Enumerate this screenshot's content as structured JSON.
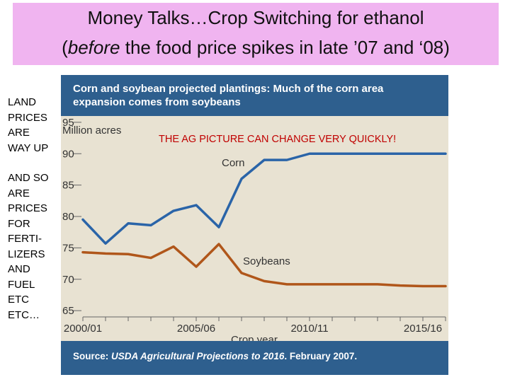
{
  "slide": {
    "title_line1": "Money Talks…Crop Switching for ethanol",
    "title_line2_open": "(",
    "title_line2_emph": "before",
    "title_line2_rest": " the food price spikes in late ’07 and ‘08)",
    "side_text_1": [
      "LAND",
      "PRICES",
      "ARE",
      "WAY UP"
    ],
    "side_text_2": [
      "AND SO",
      "ARE",
      "PRICES",
      "FOR",
      "FERTI-",
      "LIZERS",
      "AND",
      "FUEL",
      "ETC",
      "ETC…"
    ],
    "note": "THE AG PICTURE CAN CHANGE VERY QUICKLY!",
    "source_label": "Source:",
    "source_emph": "USDA Agricultural Projections to 2016",
    "source_rest": ". February 2007."
  },
  "colors": {
    "title_bg": "#f0b4f0",
    "panel_bg": "#e8e2d2",
    "header_bg": "#2e5f8e",
    "corn": "#2a64a8",
    "soybeans": "#b0561a",
    "note": "#c00000"
  },
  "chart_data": {
    "type": "line",
    "title": "Corn and soybean projected plantings: Much of the corn area expansion comes from soybeans",
    "ylabel": "Million acres",
    "xlabel": "Crop year",
    "x": [
      "2000/01",
      "2001/02",
      "2002/03",
      "2003/04",
      "2004/05",
      "2005/06",
      "2006/07",
      "2007/08",
      "2008/09",
      "2009/10",
      "2010/11",
      "2011/12",
      "2012/13",
      "2013/14",
      "2014/15",
      "2015/16",
      "2016/17"
    ],
    "xtick_labels": [
      "2000/01",
      "2005/06",
      "2010/11",
      "2015/16"
    ],
    "yticks": [
      65,
      70,
      75,
      80,
      85,
      90,
      95
    ],
    "ylim": [
      64,
      96
    ],
    "grid": false,
    "series": [
      {
        "name": "Corn",
        "color": "#2a64a8",
        "values": [
          79.5,
          75.7,
          78.9,
          78.6,
          80.9,
          81.8,
          78.3,
          86.0,
          89.0,
          89.0,
          90.0,
          90.0,
          90.0,
          90.0,
          90.0,
          90.0,
          90.0
        ]
      },
      {
        "name": "Soybeans",
        "color": "#b0561a",
        "values": [
          74.3,
          74.1,
          74.0,
          73.4,
          75.2,
          72.0,
          75.6,
          71.0,
          69.7,
          69.2,
          69.2,
          69.2,
          69.2,
          69.2,
          69.0,
          68.9,
          68.9
        ]
      }
    ]
  }
}
